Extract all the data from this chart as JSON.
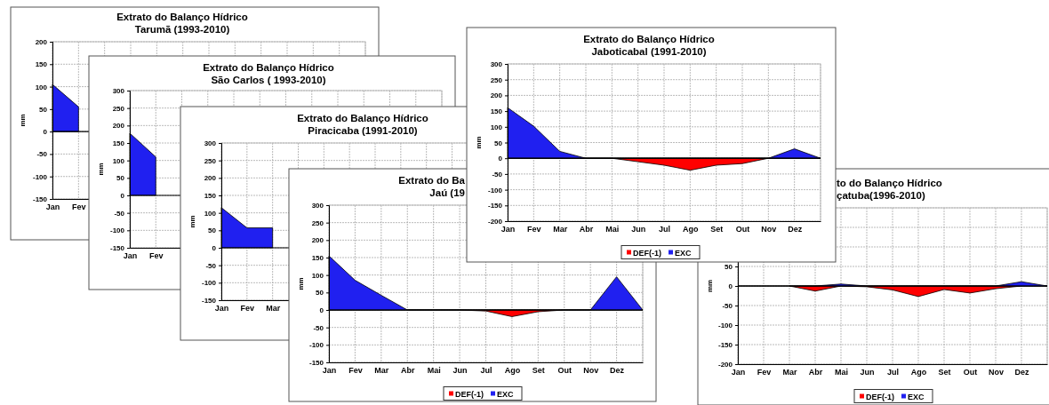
{
  "chart_data": [
    {
      "type": "area",
      "title": "Extrato do Balanço Hídrico",
      "subtitle": "Tarumã (1993-2010)",
      "ylabel": "mm",
      "categories": [
        "Jan",
        "Fev",
        null,
        null,
        null,
        null,
        null,
        null,
        null,
        null,
        null,
        null,
        null
      ],
      "ylim": [
        -150,
        200
      ],
      "yticks": [
        -150,
        -100,
        -50,
        0,
        50,
        100,
        150,
        200
      ],
      "grid": true,
      "legend": false,
      "series": [
        {
          "color": "#2020f0",
          "values": [
            105,
            55,
            null,
            null,
            null,
            null,
            null,
            null,
            null,
            null,
            null,
            null,
            null
          ]
        }
      ]
    },
    {
      "type": "area",
      "title": "Extrato do Balanço Hídrico",
      "subtitle": "São Carlos ( 1993-2010)",
      "ylabel": "mm",
      "categories": [
        "Jan",
        "Fev",
        null,
        null,
        null,
        null,
        null,
        null,
        null,
        null,
        null,
        null,
        null
      ],
      "ylim": [
        -150,
        300
      ],
      "yticks": [
        -150,
        -100,
        -50,
        0,
        50,
        100,
        150,
        200,
        250,
        300
      ],
      "grid": true,
      "legend": false,
      "series": [
        {
          "color": "#2020f0",
          "values": [
            178,
            110,
            null,
            null,
            null,
            null,
            null,
            null,
            null,
            null,
            null,
            null,
            null
          ]
        }
      ]
    },
    {
      "type": "area",
      "title": "Extrato do Balanço Hídrico",
      "subtitle": "Piracicaba (1991-2010)",
      "ylabel": "mm",
      "categories": [
        "Jan",
        "Fev",
        "Mar",
        null,
        null,
        null,
        null,
        null,
        null,
        null,
        null,
        null,
        null
      ],
      "ylim": [
        -150,
        300
      ],
      "yticks": [
        -150,
        -100,
        -50,
        0,
        50,
        100,
        150,
        200,
        250,
        300
      ],
      "grid": true,
      "legend": false,
      "series": [
        {
          "color": "#2020f0",
          "values": [
            115,
            57,
            57,
            null,
            null,
            null,
            null,
            null,
            null,
            null,
            null,
            null,
            null
          ]
        }
      ]
    },
    {
      "type": "area",
      "title": "Extrato do Ba",
      "subtitle": "Jaú (19",
      "ylabel": "mm",
      "categories": [
        "Jan",
        "Fev",
        "Mar",
        "Abr",
        "Mai",
        "Jun",
        "Jul",
        "Ago",
        "Set",
        "Out",
        "Nov",
        "Dez",
        null
      ],
      "ylim": [
        -150,
        300
      ],
      "yticks": [
        -150,
        -100,
        -50,
        0,
        50,
        100,
        150,
        200,
        250,
        300
      ],
      "grid": true,
      "legend": "bottom",
      "series": [
        {
          "name": "DEF(-1)",
          "color": "#ff0000",
          "values": [
            0,
            0,
            0,
            0,
            0,
            0,
            -3,
            -19,
            -5,
            0,
            0,
            0,
            0
          ]
        },
        {
          "name": "EXC",
          "color": "#2020f0",
          "values": [
            155,
            85,
            42,
            0,
            0,
            0,
            0,
            0,
            0,
            0,
            0,
            95,
            0
          ]
        }
      ]
    },
    {
      "type": "area",
      "title": "Extrato do Balanço Hídrico",
      "subtitle": "Jaboticabal (1991-2010)",
      "ylabel": "mm",
      "categories": [
        "Jan",
        "Fev",
        "Mar",
        "Abr",
        "Mai",
        "Jun",
        "Jul",
        "Ago",
        "Set",
        "Out",
        "Nov",
        "Dez",
        null
      ],
      "ylim": [
        -200,
        300
      ],
      "yticks": [
        -200,
        -150,
        -100,
        -50,
        0,
        50,
        100,
        150,
        200,
        250,
        300
      ],
      "grid": true,
      "legend": "bottom",
      "series": [
        {
          "name": "DEF(-1)",
          "color": "#ff0000",
          "values": [
            0,
            0,
            0,
            0,
            0,
            -11,
            -22,
            -38,
            -22,
            -17,
            0,
            0,
            0
          ]
        },
        {
          "name": "EXC",
          "color": "#2020f0",
          "values": [
            161,
            102,
            22,
            0,
            0,
            0,
            0,
            0,
            0,
            0,
            0,
            30,
            0
          ]
        }
      ]
    },
    {
      "type": "area",
      "title": "to do Balanço Hídrico",
      "subtitle": "çatuba(1996-2010)",
      "ylabel": "mm",
      "categories": [
        "Jan",
        "Fev",
        "Mar",
        "Abr",
        "Mai",
        "Jun",
        "Jul",
        "Ago",
        "Set",
        "Out",
        "Nov",
        "Dez",
        null
      ],
      "ylim": [
        -200,
        200
      ],
      "yticks": [
        {
          "value": -200,
          "label": "-200"
        },
        {
          "value": -150,
          "label": "-150"
        },
        {
          "value": -100,
          "label": "-100"
        },
        {
          "value": -50,
          "label": "-50"
        },
        {
          "value": 0,
          "label": "0"
        },
        {
          "value": 50,
          "label": "50"
        },
        {
          "value": 100,
          "label": null
        },
        {
          "value": 150,
          "label": null
        },
        {
          "value": 200,
          "label": null
        }
      ],
      "grid": true,
      "legend": "bottom",
      "series": [
        {
          "name": "DEF(-1)",
          "color": "#ff0000",
          "values": [
            0,
            0,
            0,
            -13,
            0,
            -2,
            -10,
            -27,
            -9,
            -18,
            -7,
            0,
            0
          ]
        },
        {
          "name": "EXC",
          "color": "#2020f0",
          "values": [
            null,
            null,
            0,
            0,
            5,
            0,
            0,
            0,
            0,
            0,
            0,
            11,
            0
          ]
        }
      ]
    }
  ]
}
